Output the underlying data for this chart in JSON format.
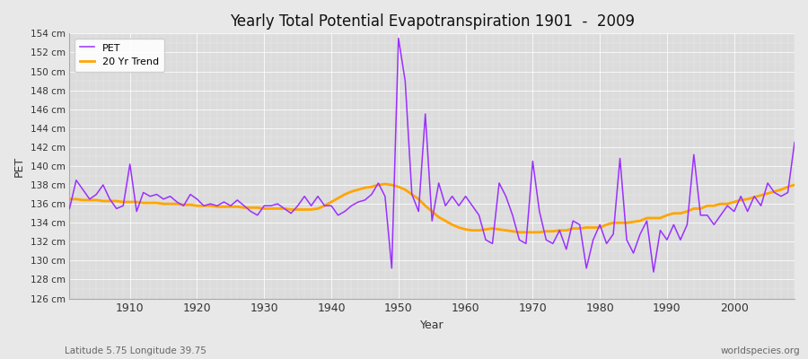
{
  "title": "Yearly Total Potential Evapotranspiration 1901  -  2009",
  "ylabel": "PET",
  "xlabel": "Year",
  "subtitle": "Latitude 5.75 Longitude 39.75",
  "watermark": "worldspecies.org",
  "pet_color": "#9B30FF",
  "trend_color": "#FFA500",
  "fig_bg_color": "#E8E8E8",
  "plot_bg_color": "#DCDCDC",
  "ylim": [
    126,
    154
  ],
  "ytick_step": 2,
  "years": [
    1901,
    1902,
    1903,
    1904,
    1905,
    1906,
    1907,
    1908,
    1909,
    1910,
    1911,
    1912,
    1913,
    1914,
    1915,
    1916,
    1917,
    1918,
    1919,
    1920,
    1921,
    1922,
    1923,
    1924,
    1925,
    1926,
    1927,
    1928,
    1929,
    1930,
    1931,
    1932,
    1933,
    1934,
    1935,
    1936,
    1937,
    1938,
    1939,
    1940,
    1941,
    1942,
    1943,
    1944,
    1945,
    1946,
    1947,
    1948,
    1949,
    1950,
    1951,
    1952,
    1953,
    1954,
    1955,
    1956,
    1957,
    1958,
    1959,
    1960,
    1961,
    1962,
    1963,
    1964,
    1965,
    1966,
    1967,
    1968,
    1969,
    1970,
    1971,
    1972,
    1973,
    1974,
    1975,
    1976,
    1977,
    1978,
    1979,
    1980,
    1981,
    1982,
    1983,
    1984,
    1985,
    1986,
    1987,
    1988,
    1989,
    1990,
    1991,
    1992,
    1993,
    1994,
    1995,
    1996,
    1997,
    1998,
    1999,
    2000,
    2001,
    2002,
    2003,
    2004,
    2005,
    2006,
    2007,
    2008,
    2009
  ],
  "pet_values": [
    135.5,
    138.5,
    137.5,
    136.5,
    137.0,
    138.0,
    136.5,
    135.5,
    135.8,
    140.2,
    135.2,
    137.2,
    136.8,
    137.0,
    136.5,
    136.8,
    136.2,
    135.8,
    137.0,
    136.5,
    135.8,
    136.0,
    135.8,
    136.2,
    135.8,
    136.4,
    135.8,
    135.2,
    134.8,
    135.8,
    135.8,
    136.0,
    135.5,
    135.0,
    135.8,
    136.8,
    135.8,
    136.8,
    135.8,
    135.8,
    134.8,
    135.2,
    135.8,
    136.2,
    136.4,
    137.0,
    138.2,
    136.8,
    129.2,
    153.5,
    149.0,
    137.0,
    135.2,
    145.5,
    134.2,
    138.2,
    135.8,
    136.8,
    135.8,
    136.8,
    135.8,
    134.8,
    132.2,
    131.8,
    138.2,
    136.8,
    134.8,
    132.2,
    131.8,
    140.5,
    135.2,
    132.2,
    131.8,
    133.2,
    131.2,
    134.2,
    133.8,
    129.2,
    132.2,
    133.8,
    131.8,
    132.8,
    140.8,
    132.2,
    130.8,
    132.8,
    134.2,
    128.8,
    133.2,
    132.2,
    133.8,
    132.2,
    133.8,
    141.2,
    134.8,
    134.8,
    133.8,
    134.8,
    135.8,
    135.2,
    136.8,
    135.2,
    136.8,
    135.8,
    138.2,
    137.2,
    136.8,
    137.2,
    142.5
  ],
  "trend_values": [
    136.5,
    136.5,
    136.4,
    136.4,
    136.4,
    136.3,
    136.3,
    136.3,
    136.2,
    136.2,
    136.2,
    136.1,
    136.1,
    136.1,
    136.0,
    136.0,
    136.0,
    135.9,
    135.9,
    135.8,
    135.8,
    135.8,
    135.7,
    135.7,
    135.7,
    135.7,
    135.6,
    135.6,
    135.6,
    135.5,
    135.5,
    135.5,
    135.5,
    135.4,
    135.4,
    135.4,
    135.4,
    135.5,
    135.8,
    136.2,
    136.6,
    137.0,
    137.3,
    137.5,
    137.7,
    137.8,
    138.0,
    138.1,
    138.0,
    137.8,
    137.5,
    137.0,
    136.5,
    135.8,
    135.2,
    134.6,
    134.2,
    133.8,
    133.5,
    133.3,
    133.2,
    133.2,
    133.3,
    133.4,
    133.3,
    133.2,
    133.1,
    133.0,
    133.0,
    133.0,
    133.0,
    133.1,
    133.1,
    133.2,
    133.2,
    133.4,
    133.4,
    133.5,
    133.5,
    133.5,
    133.8,
    134.0,
    134.0,
    134.0,
    134.1,
    134.2,
    134.5,
    134.5,
    134.5,
    134.8,
    135.0,
    135.0,
    135.2,
    135.5,
    135.5,
    135.8,
    135.8,
    136.0,
    136.0,
    136.2,
    136.4,
    136.5,
    136.7,
    136.9,
    137.1,
    137.3,
    137.5,
    137.8,
    138.0
  ]
}
